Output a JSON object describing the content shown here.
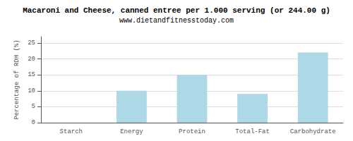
{
  "chart_data": {
    "type": "bar",
    "title": "Macaroni and Cheese, canned entree per 1.000 serving (or 244.00 g)",
    "subtitle": "www.dietandfitnesstoday.com",
    "categories": [
      "Starch",
      "Energy",
      "Protein",
      "Total-Fat",
      "Carbohydrate"
    ],
    "values": [
      0,
      10,
      15,
      9,
      22
    ],
    "color": "#add8e6",
    "ylabel": "Percentage of RDH (%)",
    "ylim": [
      0,
      27
    ],
    "yticks": [
      0,
      5,
      10,
      15,
      20,
      25
    ],
    "grid": true
  }
}
